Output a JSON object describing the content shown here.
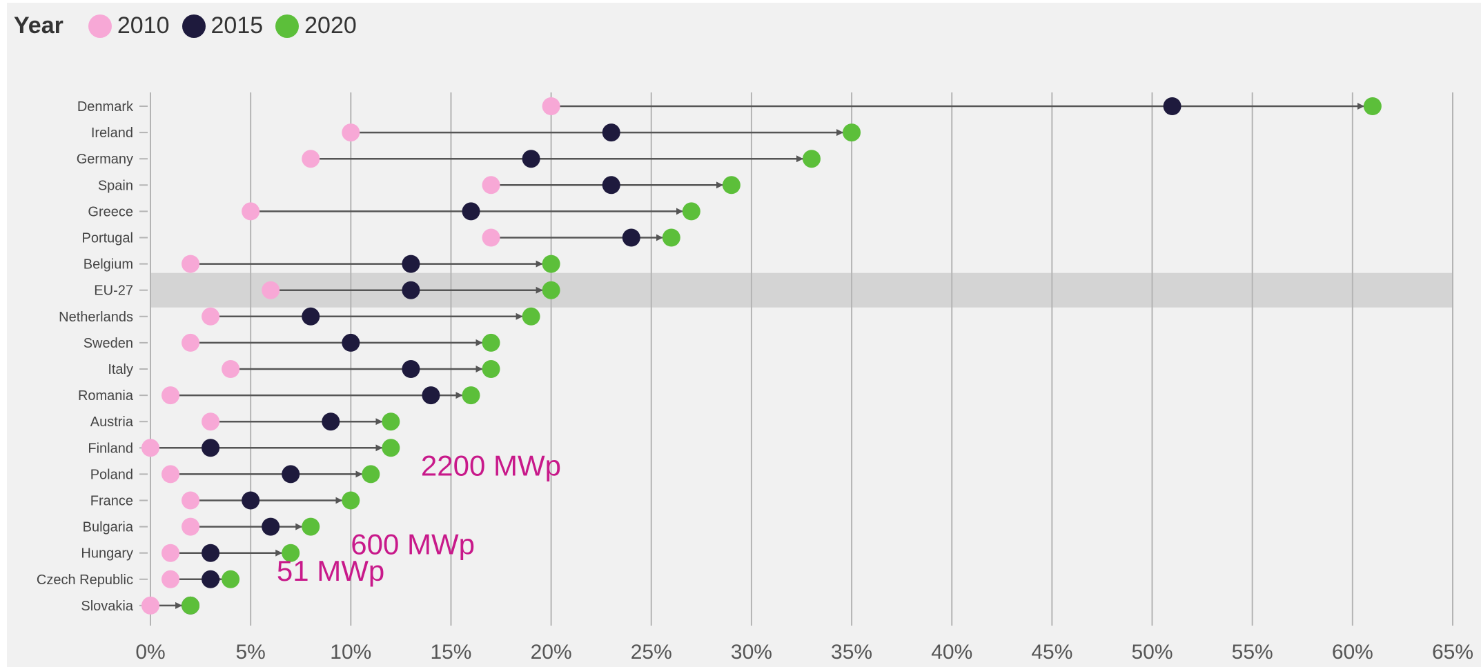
{
  "chart_data": {
    "type": "dot-arrow",
    "legend_title": "Year",
    "legend_placement": "top-left",
    "series": [
      {
        "name": "2010",
        "color": "#f7a8d6"
      },
      {
        "name": "2015",
        "color": "#1e1a3d"
      },
      {
        "name": "2020",
        "color": "#5cbf3a"
      }
    ],
    "categories": [
      {
        "name": "Denmark",
        "values": [
          20,
          51,
          61
        ]
      },
      {
        "name": "Ireland",
        "values": [
          10,
          23,
          35
        ]
      },
      {
        "name": "Germany",
        "values": [
          8,
          19,
          33
        ]
      },
      {
        "name": "Spain",
        "values": [
          17,
          23,
          29
        ]
      },
      {
        "name": "Greece",
        "values": [
          5,
          16,
          27
        ]
      },
      {
        "name": "Portugal",
        "values": [
          17,
          24,
          26
        ]
      },
      {
        "name": "Belgium",
        "values": [
          2,
          13,
          20
        ]
      },
      {
        "name": "EU-27",
        "values": [
          6,
          13,
          20
        ],
        "highlight": true
      },
      {
        "name": "Netherlands",
        "values": [
          3,
          8,
          19
        ]
      },
      {
        "name": "Sweden",
        "values": [
          2,
          10,
          17
        ]
      },
      {
        "name": "Italy",
        "values": [
          4,
          13,
          17
        ]
      },
      {
        "name": "Romania",
        "values": [
          1,
          14,
          16
        ]
      },
      {
        "name": "Austria",
        "values": [
          3,
          9,
          12
        ]
      },
      {
        "name": "Finland",
        "values": [
          0,
          3,
          12
        ]
      },
      {
        "name": "Poland",
        "values": [
          1,
          7,
          11
        ]
      },
      {
        "name": "France",
        "values": [
          2,
          5,
          10
        ]
      },
      {
        "name": "Bulgaria",
        "values": [
          2,
          6,
          8
        ]
      },
      {
        "name": "Hungary",
        "values": [
          1,
          3,
          7
        ]
      },
      {
        "name": "Czech Republic",
        "values": [
          1,
          3,
          4
        ]
      },
      {
        "name": "Slovakia",
        "values": [
          0,
          2,
          2
        ]
      }
    ],
    "xlim": [
      0,
      65
    ],
    "xticks": [
      0,
      5,
      10,
      15,
      20,
      25,
      30,
      35,
      40,
      45,
      50,
      55,
      60,
      65
    ],
    "xtick_suffix": "%",
    "grid": "vertical",
    "annotations": [
      {
        "text": "2200 MWp",
        "category": "Poland",
        "x": 13.5
      },
      {
        "text": "600 MWp",
        "category": "Hungary",
        "x": 10
      },
      {
        "text": "51 MWp",
        "category": "Czech Republic",
        "x": 6.3
      }
    ],
    "annotation_color": "#c8198a",
    "highlight_color": "#d4d4d4",
    "grid_color": "#b4b4b4",
    "line_color": "#555555"
  }
}
